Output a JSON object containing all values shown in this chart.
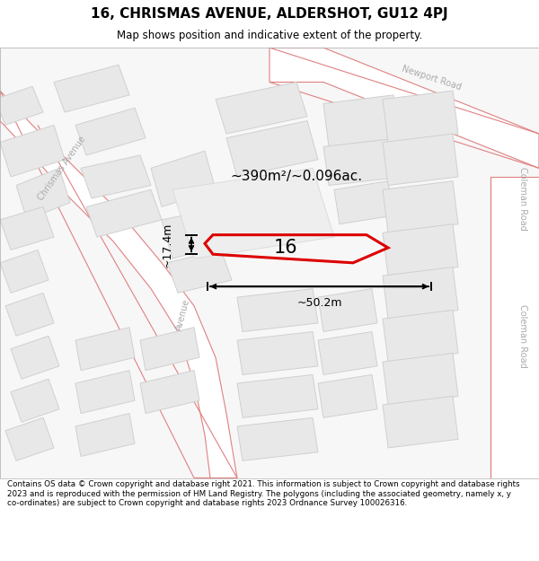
{
  "title": "16, CHRISMAS AVENUE, ALDERSHOT, GU12 4PJ",
  "subtitle": "Map shows position and indicative extent of the property.",
  "footer": "Contains OS data © Crown copyright and database right 2021. This information is subject to Crown copyright and database rights 2023 and is reproduced with the permission of HM Land Registry. The polygons (including the associated geometry, namely x, y co-ordinates) are subject to Crown copyright and database rights 2023 Ordnance Survey 100026316.",
  "area_label": "~390m²/~0.096ac.",
  "number_label": "16",
  "width_label": "~50.2m",
  "height_label": "~17.4m",
  "property_color": "#dd0000",
  "road_color": "#f5a0a0",
  "road_line_color": "#e08080",
  "building_face_color": "#e8e8e8",
  "building_edge_color": "#d0d0d0",
  "map_bg": "#fafafa",
  "road_label_color": "#aaaaaa",
  "newport_road_label": "Newport Road",
  "coleman_road_label": "Coleman Road",
  "chrismas_avenue_label": "Chrismas Avenue",
  "avenue_label": "Avenue"
}
